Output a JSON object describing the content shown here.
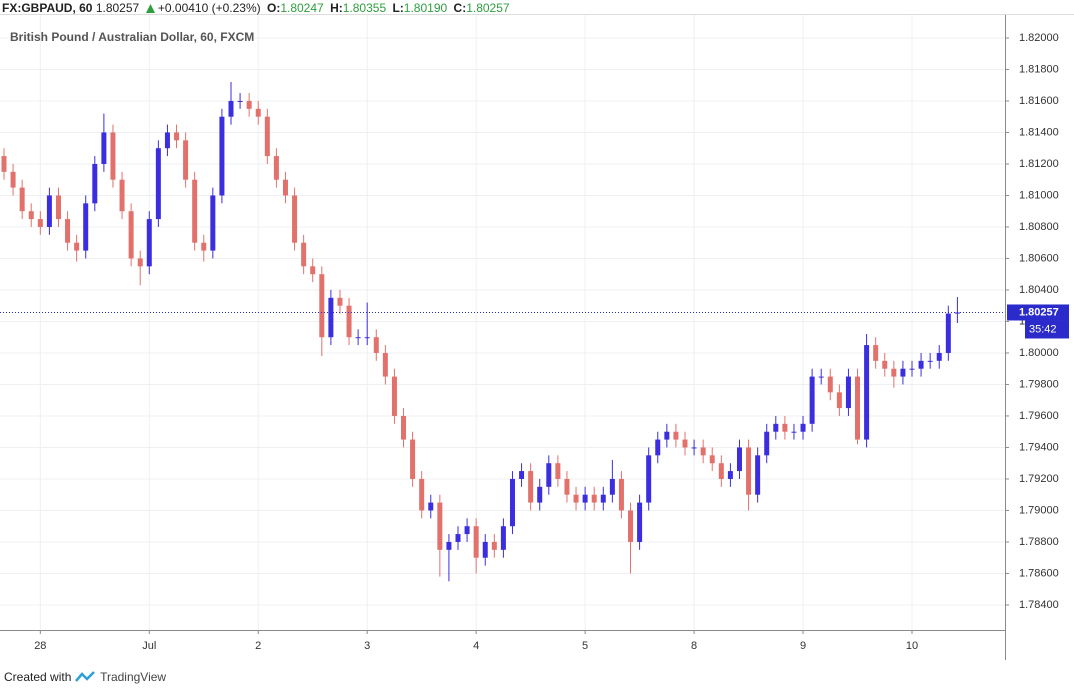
{
  "header": {
    "symbol": "FX:GBPAUD, 60",
    "price": "1.80257",
    "change": "+0.00410 (+0.23%)",
    "ohlc": [
      {
        "label": "O:",
        "value": "1.80247"
      },
      {
        "label": "H:",
        "value": "1.80355"
      },
      {
        "label": "L:",
        "value": "1.80190"
      },
      {
        "label": "C:",
        "value": "1.80257"
      }
    ]
  },
  "chart_data": {
    "type": "candlestick",
    "title": "British Pound / Australian Dollar, 60, FXCM",
    "categories": [
      null,
      null,
      null,
      null,
      "28",
      null,
      null,
      null,
      null,
      null,
      null,
      null,
      null,
      null,
      null,
      null,
      "Jul",
      null,
      null,
      null,
      null,
      null,
      null,
      null,
      null,
      null,
      null,
      null,
      "2",
      null,
      null,
      null,
      null,
      null,
      null,
      null,
      null,
      null,
      null,
      null,
      "3",
      null,
      null,
      null,
      null,
      null,
      null,
      null,
      null,
      null,
      null,
      null,
      "4",
      null,
      null,
      null,
      null,
      null,
      null,
      null,
      null,
      null,
      null,
      null,
      "5",
      null,
      null,
      null,
      null,
      null,
      null,
      null,
      null,
      null,
      null,
      null,
      "8",
      null,
      null,
      null,
      null,
      null,
      null,
      null,
      null,
      null,
      null,
      null,
      "9",
      null,
      null,
      null,
      null,
      null,
      null,
      null,
      null,
      null,
      null,
      null,
      "10",
      null,
      null,
      null,
      null,
      null
    ],
    "open": [
      1.8125,
      1.8115,
      1.8105,
      1.809,
      1.8085,
      1.808,
      1.81,
      1.8085,
      1.807,
      1.8065,
      1.8095,
      1.812,
      1.814,
      1.811,
      1.809,
      1.806,
      1.8055,
      1.8085,
      1.813,
      1.814,
      1.8135,
      1.811,
      1.807,
      1.8065,
      1.81,
      1.815,
      1.816,
      1.816,
      1.8155,
      1.815,
      1.8125,
      1.811,
      1.81,
      1.807,
      1.8055,
      1.805,
      1.801,
      1.8035,
      1.803,
      1.801,
      1.801,
      1.801,
      1.8,
      1.7985,
      1.796,
      1.7945,
      1.792,
      1.79,
      1.7905,
      1.7875,
      1.788,
      1.7885,
      1.789,
      1.787,
      1.788,
      1.7875,
      1.789,
      1.792,
      1.7925,
      1.7905,
      1.7915,
      1.793,
      1.792,
      1.791,
      1.7905,
      1.791,
      1.7905,
      1.791,
      1.792,
      1.79,
      1.788,
      1.7905,
      1.7935,
      1.7945,
      1.795,
      1.7945,
      1.794,
      1.794,
      1.7935,
      1.793,
      1.792,
      1.7925,
      1.794,
      1.791,
      1.7935,
      1.795,
      1.7955,
      1.795,
      1.795,
      1.7955,
      1.7985,
      1.7985,
      1.7975,
      1.7965,
      1.7985,
      1.7945,
      1.8005,
      1.7995,
      1.799,
      1.7985,
      1.799,
      1.799,
      1.7995,
      1.7995,
      1.8,
      1.8025
    ],
    "high": [
      1.813,
      1.812,
      1.811,
      1.8095,
      1.809,
      1.8105,
      1.8105,
      1.809,
      1.8075,
      1.81,
      1.8125,
      1.8152,
      1.8145,
      1.8115,
      1.8095,
      1.8065,
      1.809,
      1.8135,
      1.8145,
      1.8145,
      1.814,
      1.8115,
      1.8075,
      1.8105,
      1.8155,
      1.8172,
      1.8165,
      1.8165,
      1.816,
      1.8155,
      1.813,
      1.8115,
      1.8105,
      1.8075,
      1.806,
      1.8055,
      1.804,
      1.804,
      1.8035,
      1.8015,
      1.8032,
      1.8015,
      1.8005,
      1.799,
      1.7965,
      1.795,
      1.7925,
      1.791,
      1.791,
      1.7885,
      1.789,
      1.7895,
      1.7895,
      1.7885,
      1.7885,
      1.7895,
      1.7925,
      1.793,
      1.793,
      1.792,
      1.7935,
      1.7935,
      1.7925,
      1.7915,
      1.7915,
      1.7915,
      1.7915,
      1.7932,
      1.7925,
      1.7905,
      1.791,
      1.794,
      1.795,
      1.7955,
      1.7955,
      1.795,
      1.7945,
      1.7945,
      1.794,
      1.7935,
      1.793,
      1.7945,
      1.7945,
      1.794,
      1.7955,
      1.796,
      1.796,
      1.7955,
      1.796,
      1.799,
      1.799,
      1.799,
      1.798,
      1.799,
      1.799,
      1.8012,
      1.801,
      1.8,
      1.7995,
      1.7995,
      1.7995,
      1.8,
      1.8,
      1.8005,
      1.803,
      1.80355
    ],
    "low": [
      1.811,
      1.81,
      1.8085,
      1.808,
      1.8075,
      1.8075,
      1.808,
      1.8065,
      1.8058,
      1.806,
      1.809,
      1.8115,
      1.8105,
      1.8085,
      1.8055,
      1.8043,
      1.805,
      1.808,
      1.8125,
      1.813,
      1.8105,
      1.8065,
      1.8058,
      1.806,
      1.8095,
      1.8145,
      1.8155,
      1.815,
      1.8145,
      1.812,
      1.8105,
      1.8095,
      1.8065,
      1.805,
      1.8045,
      1.7998,
      1.8005,
      1.8025,
      1.8005,
      1.8005,
      1.8005,
      1.7995,
      1.798,
      1.7955,
      1.794,
      1.7915,
      1.7895,
      1.7895,
      1.7858,
      1.7855,
      1.7875,
      1.788,
      1.786,
      1.7865,
      1.787,
      1.787,
      1.7885,
      1.7915,
      1.79,
      1.79,
      1.791,
      1.7915,
      1.7905,
      1.79,
      1.79,
      1.79,
      1.79,
      1.7905,
      1.7895,
      1.786,
      1.7875,
      1.79,
      1.793,
      1.794,
      1.794,
      1.7935,
      1.7935,
      1.793,
      1.7925,
      1.7915,
      1.7915,
      1.792,
      1.79,
      1.7905,
      1.793,
      1.7945,
      1.7945,
      1.7945,
      1.7945,
      1.795,
      1.798,
      1.797,
      1.796,
      1.796,
      1.7942,
      1.794,
      1.799,
      1.7985,
      1.7978,
      1.798,
      1.7985,
      1.7985,
      1.799,
      1.799,
      1.7995,
      1.8019
    ],
    "close": [
      1.8115,
      1.8105,
      1.809,
      1.8085,
      1.808,
      1.81,
      1.8085,
      1.807,
      1.8065,
      1.8095,
      1.812,
      1.814,
      1.811,
      1.809,
      1.806,
      1.8055,
      1.8085,
      1.813,
      1.814,
      1.8135,
      1.811,
      1.807,
      1.8065,
      1.81,
      1.815,
      1.816,
      1.816,
      1.8155,
      1.815,
      1.8125,
      1.811,
      1.81,
      1.807,
      1.8055,
      1.805,
      1.801,
      1.8035,
      1.803,
      1.801,
      1.801,
      1.801,
      1.8,
      1.7985,
      1.796,
      1.7945,
      1.792,
      1.79,
      1.7905,
      1.7875,
      1.788,
      1.7885,
      1.789,
      1.787,
      1.788,
      1.7875,
      1.789,
      1.792,
      1.7925,
      1.7905,
      1.7915,
      1.793,
      1.792,
      1.791,
      1.7905,
      1.791,
      1.7905,
      1.791,
      1.792,
      1.79,
      1.788,
      1.7905,
      1.7935,
      1.7945,
      1.795,
      1.7945,
      1.794,
      1.794,
      1.7935,
      1.793,
      1.792,
      1.7925,
      1.794,
      1.791,
      1.7935,
      1.795,
      1.7955,
      1.795,
      1.795,
      1.7955,
      1.7985,
      1.7985,
      1.7975,
      1.7965,
      1.7985,
      1.7945,
      1.8005,
      1.7995,
      1.799,
      1.7985,
      1.799,
      1.799,
      1.7995,
      1.7995,
      1.8,
      1.8025,
      1.80257
    ],
    "up_color": "#3b2ee0",
    "down_color": "#e2716c",
    "price_line_color": "#2b2bcc",
    "ylim": [
      1.78241,
      1.82241
    ],
    "yticks": [
      {
        "value": 1.784,
        "label": "1.78400"
      },
      {
        "value": 1.786,
        "label": "1.78600"
      },
      {
        "value": 1.788,
        "label": "1.78800"
      },
      {
        "value": 1.79,
        "label": "1.79000"
      },
      {
        "value": 1.792,
        "label": "1.79200"
      },
      {
        "value": 1.794,
        "label": "1.79400"
      },
      {
        "value": 1.796,
        "label": "1.79600"
      },
      {
        "value": 1.798,
        "label": "1.79800"
      },
      {
        "value": 1.8,
        "label": "1.80000"
      },
      {
        "value": 1.802,
        "label": "1.80200"
      },
      {
        "value": 1.804,
        "label": "1.80400"
      },
      {
        "value": 1.806,
        "label": "1.80600"
      },
      {
        "value": 1.808,
        "label": "1.80800"
      },
      {
        "value": 1.81,
        "label": "1.81000"
      },
      {
        "value": 1.812,
        "label": "1.81200"
      },
      {
        "value": 1.814,
        "label": "1.81400"
      },
      {
        "value": 1.816,
        "label": "1.81600"
      },
      {
        "value": 1.818,
        "label": "1.81800"
      },
      {
        "value": 1.82,
        "label": "1.82000"
      }
    ],
    "grid": true,
    "last_price_label": "1.80257",
    "countdown": "35:42"
  },
  "footer": {
    "text": "Created with",
    "brand": "TradingView"
  }
}
